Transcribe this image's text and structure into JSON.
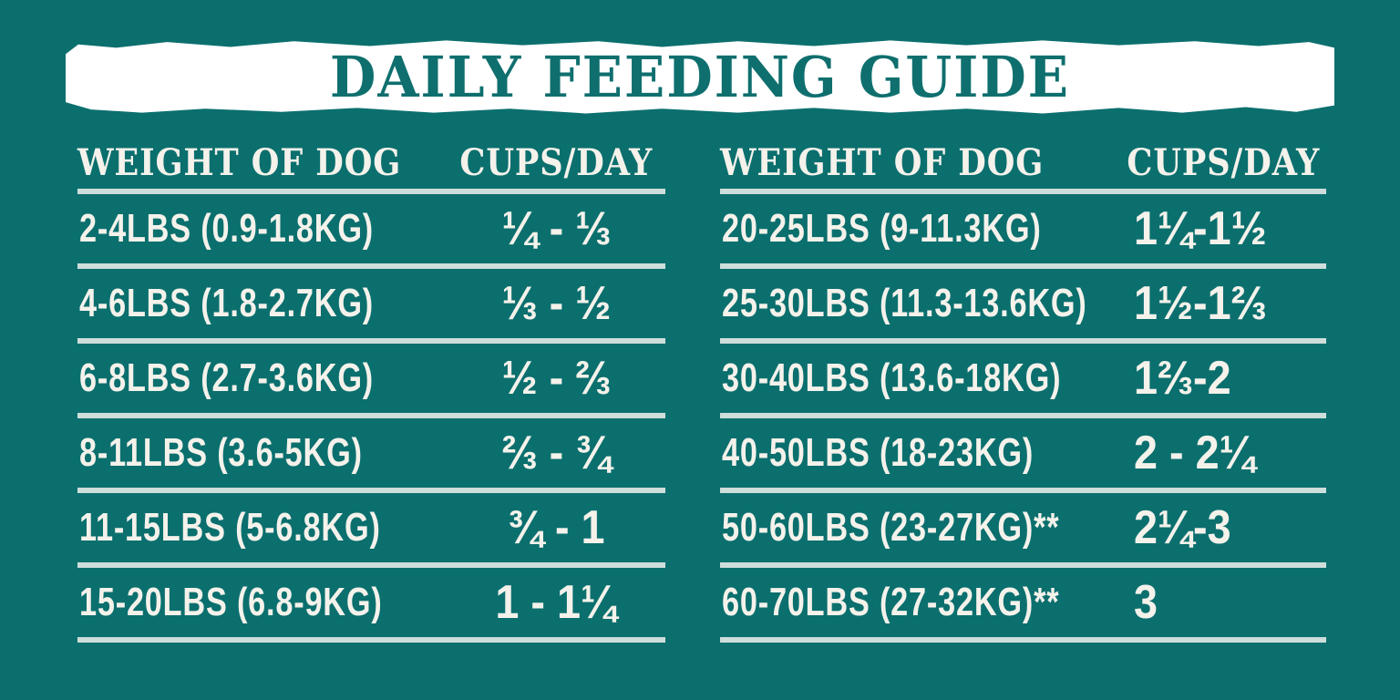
{
  "theme": {
    "bg": "#0b6f6e",
    "banner": "#ffffff",
    "title": "#0f6f6e",
    "divider": "#cddedb",
    "text": "#f4f2eb"
  },
  "title": "DAILY FEEDING GUIDE",
  "chart_data": [
    {
      "type": "table",
      "title": "DAILY FEEDING GUIDE",
      "columns": [
        "WEIGHT OF DOG",
        "CUPS/DAY"
      ],
      "rows": [
        [
          "2-4LBS (0.9-1.8KG)",
          "¼ - ⅓"
        ],
        [
          "4-6LBS (1.8-2.7KG)",
          "⅓ - ½"
        ],
        [
          "6-8LBS (2.7-3.6KG)",
          "½ - ⅔"
        ],
        [
          "8-11LBS (3.6-5KG)",
          "⅔ - ¾"
        ],
        [
          "11-15LBS (5-6.8KG)",
          "¾ - 1"
        ],
        [
          "15-20LBS (6.8-9KG)",
          "1 - 1¼"
        ]
      ]
    },
    {
      "type": "table",
      "title": "DAILY FEEDING GUIDE",
      "columns": [
        "WEIGHT OF DOG",
        "CUPS/DAY"
      ],
      "rows": [
        [
          "20-25LBS (9-11.3KG)",
          "1¼-1½"
        ],
        [
          "25-30LBS (11.3-13.6KG)",
          "1½-1⅔"
        ],
        [
          "30-40LBS (13.6-18KG)",
          "1⅔-2"
        ],
        [
          "40-50LBS (18-23KG)",
          "2 - 2¼"
        ],
        [
          "50-60LBS (23-27KG)**",
          "2¼-3"
        ],
        [
          "60-70LBS (27-32KG)**",
          "3"
        ]
      ]
    }
  ]
}
